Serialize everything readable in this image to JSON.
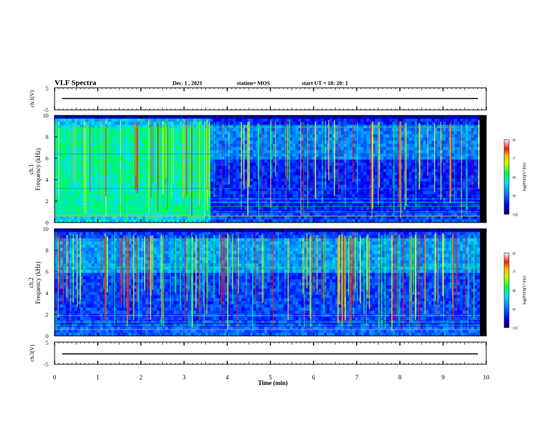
{
  "header": {
    "title": "VLF Spectra",
    "date": "Dec. 1 , 2021",
    "station": "station= MOS",
    "start": "start UT = 18: 20: 1"
  },
  "chart_data": [
    {
      "type": "line",
      "panel": "ch1-waveform",
      "ylabel": "ch.1(V)",
      "ylim": [
        -5,
        5
      ],
      "yticks": [
        "5",
        "-5"
      ],
      "series_value": 0
    },
    {
      "type": "heatmap",
      "panel": "ch1-spectrogram",
      "ylabel": "ch.1\nFrequency (kHz)",
      "ylabel_lines": [
        "ch.1",
        "Frequency (kHz)"
      ],
      "ylim": [
        0,
        10
      ],
      "yticks": [
        "0",
        "2",
        "4",
        "6",
        "8",
        "10"
      ],
      "xlim": [
        0,
        10
      ],
      "colorbar": {
        "label": "log(PSD)(V²/Hz)",
        "range": [
          -10,
          -6
        ],
        "ticks": [
          "-6",
          "-7",
          "-8",
          "-9",
          "-10"
        ]
      },
      "description_regions": [
        {
          "t_start": 0,
          "t_end": 3.6,
          "level": "high broadband (-8 to -7) 0.5-9 kHz"
        },
        {
          "t_start": 3.6,
          "t_end": 9.85,
          "level": "low background (-10 to -9) with impulsive sferics"
        }
      ]
    },
    {
      "type": "heatmap",
      "panel": "ch2-spectrogram",
      "ylabel": "ch.2\nFrequency (kHz)",
      "ylabel_lines": [
        "ch.2",
        "Frequency (kHz)"
      ],
      "ylim": [
        0,
        10
      ],
      "yticks": [
        "0",
        "2",
        "4",
        "6",
        "8",
        "10"
      ],
      "xlim": [
        0,
        10
      ],
      "colorbar": {
        "label": "log(PSD)(V²/Hz)",
        "range": [
          -10,
          -6
        ],
        "ticks": [
          "-6",
          "-7",
          "-8",
          "-9",
          "-10"
        ]
      }
    },
    {
      "type": "line",
      "panel": "ch3-waveform",
      "ylabel": "ch.3(V)",
      "ylim": [
        -5,
        5
      ],
      "yticks": [
        "5",
        "-5"
      ],
      "series_value": 0,
      "xlabel": "Time (min)",
      "xlim": [
        0,
        10
      ],
      "xticks": [
        "0",
        "1",
        "2",
        "3",
        "4",
        "5",
        "6",
        "7",
        "8",
        "9",
        "10"
      ]
    }
  ],
  "colors": {
    "colormap": [
      "#000000",
      "#0000c8",
      "#0050ff",
      "#00c8ff",
      "#00ff80",
      "#80ff00",
      "#ffff00",
      "#ff8000",
      "#ff0000",
      "#ffffff"
    ]
  }
}
